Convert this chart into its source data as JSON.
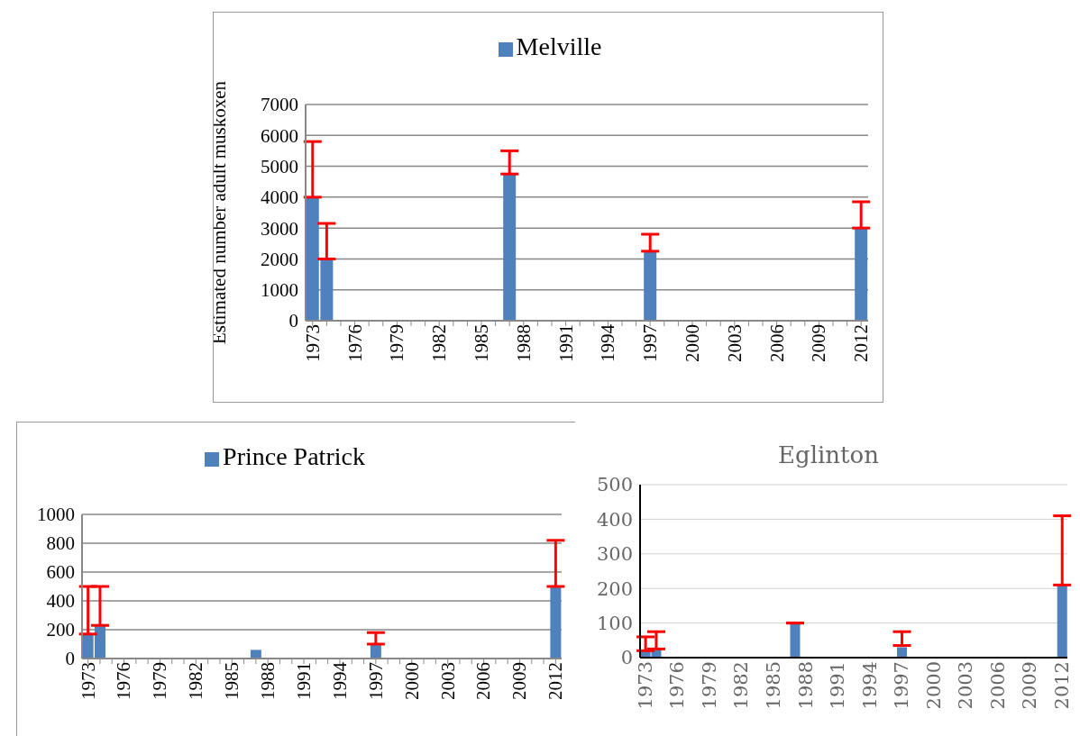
{
  "chart_data": [
    {
      "type": "bar",
      "ylabel": "Estimated number adult muskoxen",
      "categories": [
        "1973",
        null,
        null,
        "1976",
        null,
        null,
        "1979",
        null,
        null,
        "1982",
        null,
        null,
        "1985",
        null,
        null,
        "1988",
        null,
        null,
        "1991",
        null,
        null,
        "1994",
        null,
        null,
        "1997",
        null,
        null,
        "2000",
        null,
        null,
        "2003",
        null,
        null,
        "2006",
        null,
        null,
        "2009",
        null,
        null,
        "2012"
      ],
      "series": [
        {
          "name": "Melville",
          "color": "#4f81bd",
          "values": [
            4000,
            2000,
            null,
            null,
            null,
            null,
            null,
            null,
            null,
            null,
            null,
            null,
            null,
            null,
            4750,
            null,
            null,
            null,
            null,
            null,
            null,
            null,
            null,
            null,
            2250,
            null,
            null,
            null,
            null,
            null,
            null,
            null,
            null,
            null,
            null,
            null,
            null,
            null,
            null,
            3000
          ],
          "errors": [
            [
              4000,
              5800
            ],
            [
              2000,
              3150
            ],
            null,
            null,
            null,
            null,
            null,
            null,
            null,
            null,
            null,
            null,
            null,
            null,
            [
              4750,
              5500
            ],
            null,
            null,
            null,
            null,
            null,
            null,
            null,
            null,
            null,
            [
              2250,
              2800
            ],
            null,
            null,
            null,
            null,
            null,
            null,
            null,
            null,
            null,
            null,
            null,
            null,
            null,
            null,
            [
              3000,
              3850
            ]
          ]
        }
      ],
      "ylim": [
        0,
        7000
      ],
      "yticks": [
        0,
        1000,
        2000,
        3000,
        4000,
        5000,
        6000,
        7000
      ],
      "grid": "y",
      "legend": "top"
    },
    {
      "type": "bar",
      "categories": [
        "1973",
        null,
        null,
        "1976",
        null,
        null,
        "1979",
        null,
        null,
        "1982",
        null,
        null,
        "1985",
        null,
        null,
        "1988",
        null,
        null,
        "1991",
        null,
        null,
        "1994",
        null,
        null,
        "1997",
        null,
        null,
        "2000",
        null,
        null,
        "2003",
        null,
        null,
        "2006",
        null,
        null,
        "2009",
        null,
        null,
        "2012"
      ],
      "series": [
        {
          "name": "Prince Patrick",
          "color": "#4f81bd",
          "values": [
            170,
            230,
            null,
            null,
            null,
            null,
            null,
            null,
            null,
            null,
            null,
            null,
            null,
            null,
            60,
            null,
            null,
            null,
            null,
            null,
            null,
            null,
            null,
            null,
            100,
            null,
            null,
            null,
            null,
            null,
            null,
            null,
            null,
            null,
            null,
            null,
            null,
            null,
            null,
            500
          ],
          "errors": [
            [
              170,
              500
            ],
            [
              230,
              500
            ],
            null,
            null,
            null,
            null,
            null,
            null,
            null,
            null,
            null,
            null,
            null,
            null,
            null,
            null,
            null,
            null,
            null,
            null,
            null,
            null,
            null,
            null,
            [
              100,
              180
            ],
            null,
            null,
            null,
            null,
            null,
            null,
            null,
            null,
            null,
            null,
            null,
            null,
            null,
            null,
            [
              500,
              820
            ]
          ]
        }
      ],
      "ylim": [
        0,
        1000
      ],
      "yticks": [
        0,
        200,
        400,
        600,
        800,
        1000
      ],
      "grid": "y",
      "legend": "top"
    },
    {
      "type": "bar",
      "title": "Eglinton",
      "categories": [
        "1973",
        null,
        null,
        "1976",
        null,
        null,
        "1979",
        null,
        null,
        "1982",
        null,
        null,
        "1985",
        null,
        null,
        "1988",
        null,
        null,
        "1991",
        null,
        null,
        "1994",
        null,
        null,
        "1997",
        null,
        null,
        "2000",
        null,
        null,
        "2003",
        null,
        null,
        "2006",
        null,
        null,
        "2009",
        null,
        null,
        "2012"
      ],
      "series": [
        {
          "color": "#4f81bd",
          "values": [
            20,
            25,
            null,
            null,
            null,
            null,
            null,
            null,
            null,
            null,
            null,
            null,
            null,
            null,
            100,
            null,
            null,
            null,
            null,
            null,
            null,
            null,
            null,
            null,
            30,
            null,
            null,
            null,
            null,
            null,
            null,
            null,
            null,
            null,
            null,
            null,
            null,
            null,
            null,
            210
          ],
          "errors": [
            [
              20,
              60
            ],
            [
              25,
              75
            ],
            null,
            null,
            null,
            null,
            null,
            null,
            null,
            null,
            null,
            null,
            null,
            null,
            [
              100,
              100
            ],
            null,
            null,
            null,
            null,
            null,
            null,
            null,
            null,
            null,
            [
              35,
              75
            ],
            null,
            null,
            null,
            null,
            null,
            null,
            null,
            null,
            null,
            null,
            null,
            null,
            null,
            null,
            [
              210,
              410
            ]
          ]
        }
      ],
      "ylim": [
        0,
        500
      ],
      "yticks": [
        0,
        100,
        200,
        300,
        400,
        500
      ],
      "grid": "y"
    }
  ]
}
